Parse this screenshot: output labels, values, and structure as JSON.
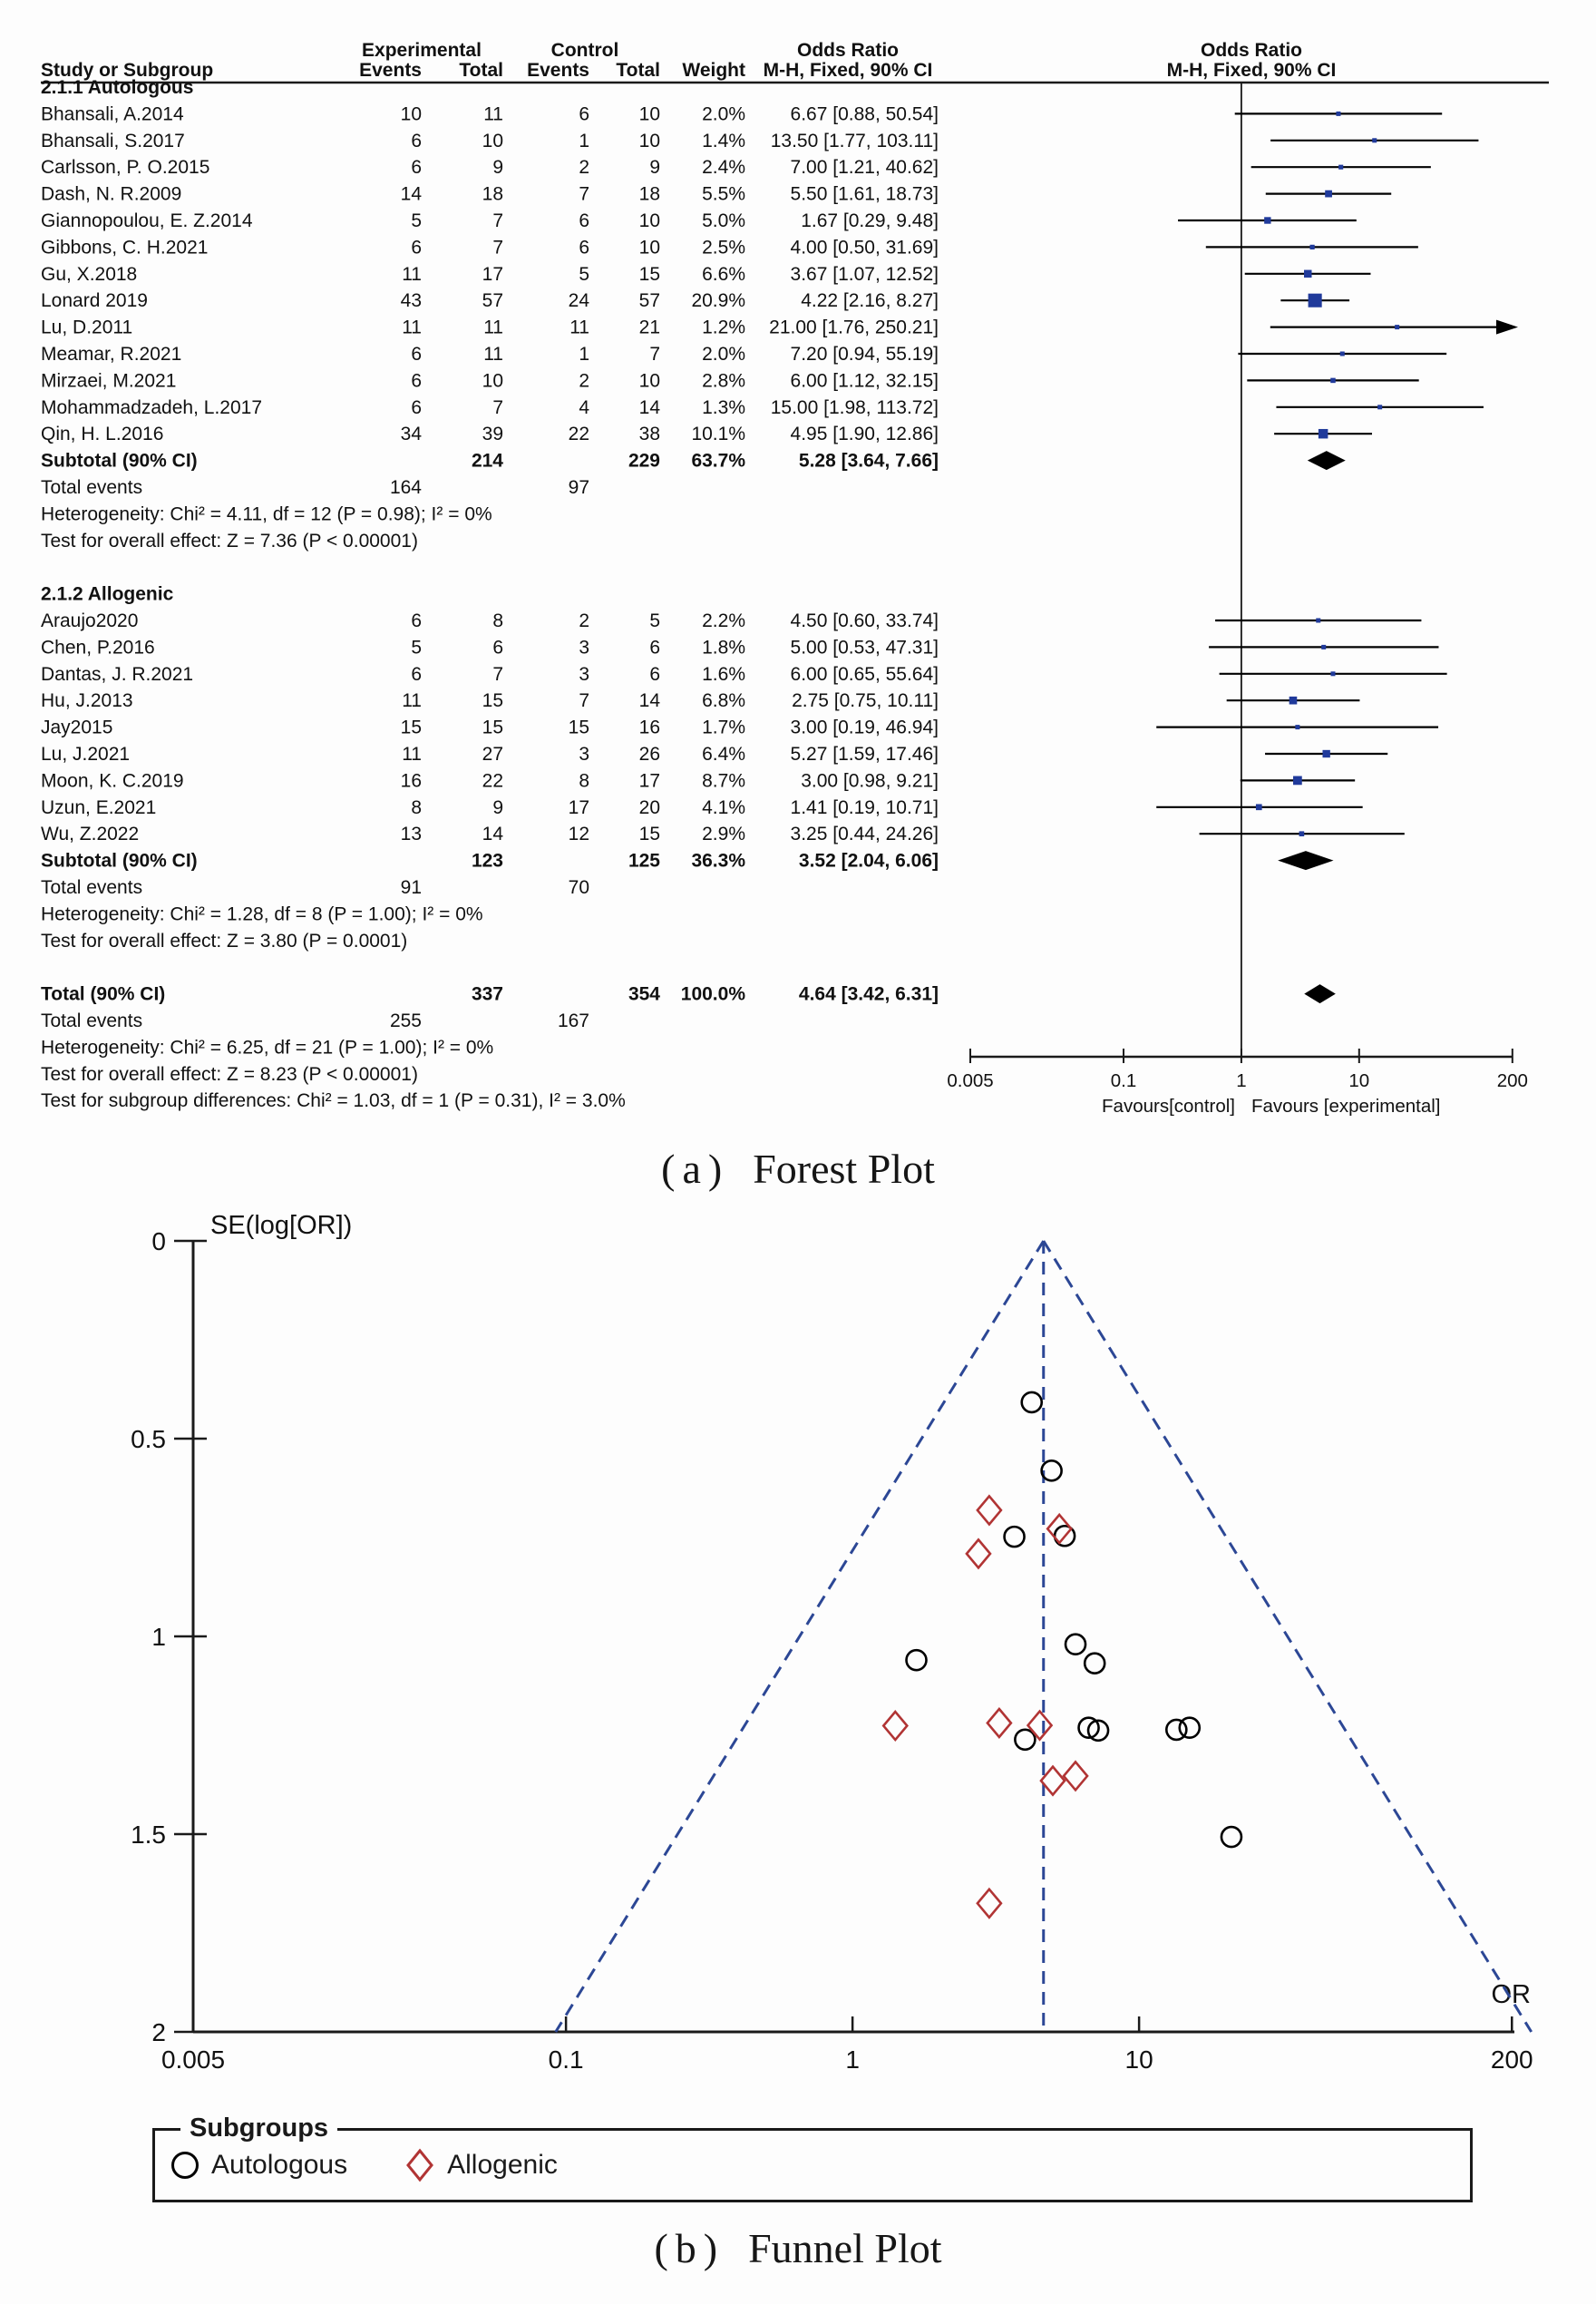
{
  "captions": {
    "a_prefix": "(a)",
    "a_text": "Forest Plot",
    "b_prefix": "(b)",
    "b_text": "Funnel Plot"
  },
  "colors": {
    "text": "#111111",
    "forest_marker": "#203a9b",
    "funnel_dashed": "#2c4795",
    "allogenic_red": "#b13434",
    "axis": "#1a1a1a"
  },
  "chart_data": [
    {
      "type": "forest",
      "title": "(a) Forest Plot",
      "headers": {
        "group1": "Experimental",
        "group2": "Control",
        "or": "Odds Ratio",
        "method": "M-H, Fixed, 90% CI",
        "study": "Study or Subgroup",
        "events": "Events",
        "total": "Total",
        "weight": "Weight"
      },
      "subgroups": [
        {
          "title": "2.1.1 Autologous",
          "studies": [
            {
              "name": "Bhansali, A.2014",
              "e_ev": 10,
              "e_tot": 11,
              "c_ev": 6,
              "c_tot": 10,
              "weight": 2.0,
              "weight_label": "2.0%",
              "or": 6.67,
              "lo": 0.88,
              "hi": 50.54,
              "ci_label": "6.67 [0.88, 50.54]"
            },
            {
              "name": "Bhansali, S.2017",
              "e_ev": 6,
              "e_tot": 10,
              "c_ev": 1,
              "c_tot": 10,
              "weight": 1.4,
              "weight_label": "1.4%",
              "or": 13.5,
              "lo": 1.77,
              "hi": 103.11,
              "ci_label": "13.50 [1.77, 103.11]"
            },
            {
              "name": "Carlsson, P. O.2015",
              "e_ev": 6,
              "e_tot": 9,
              "c_ev": 2,
              "c_tot": 9,
              "weight": 2.4,
              "weight_label": "2.4%",
              "or": 7.0,
              "lo": 1.21,
              "hi": 40.62,
              "ci_label": "7.00 [1.21, 40.62]"
            },
            {
              "name": "Dash, N. R.2009",
              "e_ev": 14,
              "e_tot": 18,
              "c_ev": 7,
              "c_tot": 18,
              "weight": 5.5,
              "weight_label": "5.5%",
              "or": 5.5,
              "lo": 1.61,
              "hi": 18.73,
              "ci_label": "5.50 [1.61, 18.73]"
            },
            {
              "name": "Giannopoulou, E. Z.2014",
              "e_ev": 5,
              "e_tot": 7,
              "c_ev": 6,
              "c_tot": 10,
              "weight": 5.0,
              "weight_label": "5.0%",
              "or": 1.67,
              "lo": 0.29,
              "hi": 9.48,
              "ci_label": "1.67 [0.29, 9.48]"
            },
            {
              "name": "Gibbons, C. H.2021",
              "e_ev": 6,
              "e_tot": 7,
              "c_ev": 6,
              "c_tot": 10,
              "weight": 2.5,
              "weight_label": "2.5%",
              "or": 4.0,
              "lo": 0.5,
              "hi": 31.69,
              "ci_label": "4.00 [0.50, 31.69]"
            },
            {
              "name": "Gu, X.2018",
              "e_ev": 11,
              "e_tot": 17,
              "c_ev": 5,
              "c_tot": 15,
              "weight": 6.6,
              "weight_label": "6.6%",
              "or": 3.67,
              "lo": 1.07,
              "hi": 12.52,
              "ci_label": "3.67 [1.07, 12.52]"
            },
            {
              "name": "Lonard 2019",
              "e_ev": 43,
              "e_tot": 57,
              "c_ev": 24,
              "c_tot": 57,
              "weight": 20.9,
              "weight_label": "20.9%",
              "or": 4.22,
              "lo": 2.16,
              "hi": 8.27,
              "ci_label": "4.22 [2.16, 8.27]"
            },
            {
              "name": "Lu, D.2011",
              "e_ev": 11,
              "e_tot": 11,
              "c_ev": 11,
              "c_tot": 21,
              "weight": 1.2,
              "weight_label": "1.2%",
              "or": 21.0,
              "lo": 1.76,
              "hi": 250.21,
              "ci_label": "21.00 [1.76, 250.21]"
            },
            {
              "name": "Meamar, R.2021",
              "e_ev": 6,
              "e_tot": 11,
              "c_ev": 1,
              "c_tot": 7,
              "weight": 2.0,
              "weight_label": "2.0%",
              "or": 7.2,
              "lo": 0.94,
              "hi": 55.19,
              "ci_label": "7.20 [0.94, 55.19]"
            },
            {
              "name": "Mirzaei, M.2021",
              "e_ev": 6,
              "e_tot": 10,
              "c_ev": 2,
              "c_tot": 10,
              "weight": 2.8,
              "weight_label": "2.8%",
              "or": 6.0,
              "lo": 1.12,
              "hi": 32.15,
              "ci_label": "6.00 [1.12, 32.15]"
            },
            {
              "name": "Mohammadzadeh, L.2017",
              "e_ev": 6,
              "e_tot": 7,
              "c_ev": 4,
              "c_tot": 14,
              "weight": 1.3,
              "weight_label": "1.3%",
              "or": 15.0,
              "lo": 1.98,
              "hi": 113.72,
              "ci_label": "15.00 [1.98, 113.72]"
            },
            {
              "name": "Qin, H. L.2016",
              "e_ev": 34,
              "e_tot": 39,
              "c_ev": 22,
              "c_tot": 38,
              "weight": 10.1,
              "weight_label": "10.1%",
              "or": 4.95,
              "lo": 1.9,
              "hi": 12.86,
              "ci_label": "4.95 [1.90, 12.86]"
            }
          ],
          "subtotal": {
            "label": "Subtotal (90% CI)",
            "e_tot": 214,
            "c_tot": 229,
            "weight_label": "63.7%",
            "or": 5.28,
            "lo": 3.64,
            "hi": 7.66,
            "ci_label": "5.28 [3.64, 7.66]"
          },
          "total_events": {
            "label": "Total events",
            "exp": 164,
            "ctl": 97
          },
          "heterogeneity": "Heterogeneity: Chi² = 4.11, df = 12 (P = 0.98); I² = 0%",
          "overall_effect": "Test for overall effect: Z = 7.36 (P < 0.00001)"
        },
        {
          "title": "2.1.2 Allogenic",
          "studies": [
            {
              "name": "Araujo2020",
              "e_ev": 6,
              "e_tot": 8,
              "c_ev": 2,
              "c_tot": 5,
              "weight": 2.2,
              "weight_label": "2.2%",
              "or": 4.5,
              "lo": 0.6,
              "hi": 33.74,
              "ci_label": "4.50 [0.60, 33.74]"
            },
            {
              "name": "Chen, P.2016",
              "e_ev": 5,
              "e_tot": 6,
              "c_ev": 3,
              "c_tot": 6,
              "weight": 1.8,
              "weight_label": "1.8%",
              "or": 5.0,
              "lo": 0.53,
              "hi": 47.31,
              "ci_label": "5.00 [0.53, 47.31]"
            },
            {
              "name": "Dantas, J. R.2021",
              "e_ev": 6,
              "e_tot": 7,
              "c_ev": 3,
              "c_tot": 6,
              "weight": 1.6,
              "weight_label": "1.6%",
              "or": 6.0,
              "lo": 0.65,
              "hi": 55.64,
              "ci_label": "6.00 [0.65, 55.64]"
            },
            {
              "name": "Hu, J.2013",
              "e_ev": 11,
              "e_tot": 15,
              "c_ev": 7,
              "c_tot": 14,
              "weight": 6.8,
              "weight_label": "6.8%",
              "or": 2.75,
              "lo": 0.75,
              "hi": 10.11,
              "ci_label": "2.75 [0.75, 10.11]"
            },
            {
              "name": "Jay2015",
              "e_ev": 15,
              "e_tot": 15,
              "c_ev": 15,
              "c_tot": 16,
              "weight": 1.7,
              "weight_label": "1.7%",
              "or": 3.0,
              "lo": 0.19,
              "hi": 46.94,
              "ci_label": "3.00 [0.19, 46.94]"
            },
            {
              "name": "Lu, J.2021",
              "e_ev": 11,
              "e_tot": 27,
              "c_ev": 3,
              "c_tot": 26,
              "weight": 6.4,
              "weight_label": "6.4%",
              "or": 5.27,
              "lo": 1.59,
              "hi": 17.46,
              "ci_label": "5.27 [1.59, 17.46]"
            },
            {
              "name": "Moon, K. C.2019",
              "e_ev": 16,
              "e_tot": 22,
              "c_ev": 8,
              "c_tot": 17,
              "weight": 8.7,
              "weight_label": "8.7%",
              "or": 3.0,
              "lo": 0.98,
              "hi": 9.21,
              "ci_label": "3.00 [0.98, 9.21]"
            },
            {
              "name": "Uzun, E.2021",
              "e_ev": 8,
              "e_tot": 9,
              "c_ev": 17,
              "c_tot": 20,
              "weight": 4.1,
              "weight_label": "4.1%",
              "or": 1.41,
              "lo": 0.19,
              "hi": 10.71,
              "ci_label": "1.41 [0.19, 10.71]"
            },
            {
              "name": "Wu, Z.2022",
              "e_ev": 13,
              "e_tot": 14,
              "c_ev": 12,
              "c_tot": 15,
              "weight": 2.9,
              "weight_label": "2.9%",
              "or": 3.25,
              "lo": 0.44,
              "hi": 24.26,
              "ci_label": "3.25 [0.44, 24.26]"
            }
          ],
          "subtotal": {
            "label": "Subtotal (90% CI)",
            "e_tot": 123,
            "c_tot": 125,
            "weight_label": "36.3%",
            "or": 3.52,
            "lo": 2.04,
            "hi": 6.06,
            "ci_label": "3.52 [2.04, 6.06]"
          },
          "total_events": {
            "label": "Total events",
            "exp": 91,
            "ctl": 70
          },
          "heterogeneity": "Heterogeneity: Chi² = 1.28, df = 8 (P = 1.00); I² = 0%",
          "overall_effect": "Test for overall effect: Z = 3.80 (P = 0.0001)"
        }
      ],
      "total": {
        "label": "Total (90% CI)",
        "e_tot": 337,
        "c_tot": 354,
        "weight_label": "100.0%",
        "or": 4.64,
        "lo": 3.42,
        "hi": 6.31,
        "ci_label": "4.64 [3.42, 6.31]",
        "total_events": {
          "label": "Total events",
          "exp": 255,
          "ctl": 167
        },
        "heterogeneity": "Heterogeneity: Chi² = 6.25, df = 21 (P = 1.00); I² = 0%",
        "overall_effect": "Test for overall effect: Z = 8.23 (P < 0.00001)",
        "subgroup_diff": "Test for subgroup differences: Chi² = 1.03, df = 1 (P = 0.31), I² = 3.0%"
      },
      "axis": {
        "x_scale": "log",
        "ticks": [
          0.005,
          0.1,
          1,
          10,
          200
        ],
        "tick_labels": [
          "0.005",
          "0.1",
          "1",
          "10",
          "200"
        ],
        "favours_left": "Favours[control]",
        "favours_right": "Favours [experimental]"
      }
    },
    {
      "type": "scatter",
      "variant": "funnel",
      "title": "(b) Funnel Plot",
      "xlabel": "OR",
      "ylabel": "SE(log[OR])",
      "x_scale": "log",
      "xlim": [
        0.005,
        200
      ],
      "ylim": [
        0,
        2
      ],
      "y_inverted": true,
      "x_ticks": [
        0.005,
        0.1,
        1,
        10,
        200
      ],
      "x_tick_labels": [
        "0.005",
        "0.1",
        "1",
        "10",
        "200"
      ],
      "y_ticks": [
        0,
        0.5,
        1,
        1.5,
        2
      ],
      "y_tick_labels": [
        "0",
        "0.5",
        "1",
        "1.5",
        "2"
      ],
      "center_or": 4.64,
      "pseudo_ci_z": 1.96,
      "series": [
        {
          "name": "Autologous",
          "marker": "circle",
          "color": "#000000",
          "points": [
            {
              "or": 6.67,
              "se": 1.231
            },
            {
              "or": 13.5,
              "se": 1.236
            },
            {
              "or": 7.0,
              "se": 1.068
            },
            {
              "or": 5.5,
              "se": 0.746
            },
            {
              "or": 1.67,
              "se": 1.06
            },
            {
              "or": 4.0,
              "se": 1.261
            },
            {
              "or": 3.67,
              "se": 0.748
            },
            {
              "or": 4.22,
              "se": 0.408
            },
            {
              "or": 21.0,
              "se": 1.507
            },
            {
              "or": 7.2,
              "se": 1.238
            },
            {
              "or": 6.0,
              "se": 1.02
            },
            {
              "or": 15.0,
              "se": 1.231
            },
            {
              "or": 4.95,
              "se": 0.581
            }
          ]
        },
        {
          "name": "Allogenic",
          "marker": "diamond",
          "color": "#b13434",
          "points": [
            {
              "or": 4.5,
              "se": 1.225
            },
            {
              "or": 5.0,
              "se": 1.365
            },
            {
              "or": 6.0,
              "se": 1.353
            },
            {
              "or": 2.75,
              "se": 0.791
            },
            {
              "or": 3.0,
              "se": 1.675
            },
            {
              "or": 5.27,
              "se": 0.728
            },
            {
              "or": 3.0,
              "se": 0.681
            },
            {
              "or": 1.41,
              "se": 1.226
            },
            {
              "or": 3.25,
              "se": 1.219
            }
          ]
        }
      ],
      "legend": {
        "title": "Subgroups",
        "items": [
          {
            "label": "Autologous",
            "marker": "circle"
          },
          {
            "label": "Allogenic",
            "marker": "diamond"
          }
        ]
      }
    }
  ]
}
